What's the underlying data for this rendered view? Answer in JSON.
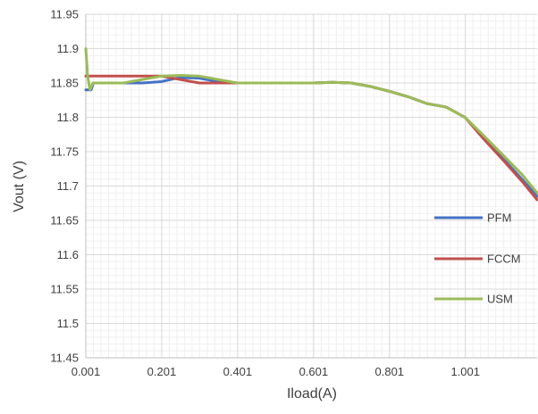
{
  "chart_data": {
    "type": "line",
    "title": "",
    "xlabel": "Iload(A)",
    "ylabel": "Vout (V)",
    "xlim": [
      0.001,
      1.19
    ],
    "ylim": [
      11.45,
      11.95
    ],
    "x_ticks": [
      0.001,
      0.201,
      0.401,
      0.601,
      0.801,
      1.001
    ],
    "x_tick_labels": [
      "0.001",
      "0.201",
      "0.401",
      "0.601",
      "0.801",
      "1.001"
    ],
    "y_ticks": [
      11.45,
      11.5,
      11.55,
      11.6,
      11.65,
      11.7,
      11.75,
      11.8,
      11.85,
      11.9,
      11.95
    ],
    "y_tick_labels": [
      "11.45",
      "11.5",
      "11.55",
      "11.6",
      "11.65",
      "11.7",
      "11.75",
      "11.8",
      "11.85",
      "11.9",
      "11.95"
    ],
    "grid": true,
    "legend_position": "bottom-right",
    "series": [
      {
        "name": "PFM",
        "color": "#4472C4",
        "points": [
          [
            0.001,
            11.84
          ],
          [
            0.015,
            11.84
          ],
          [
            0.021,
            11.85
          ],
          [
            0.05,
            11.85
          ],
          [
            0.1,
            11.85
          ],
          [
            0.15,
            11.85
          ],
          [
            0.2,
            11.852
          ],
          [
            0.25,
            11.858
          ],
          [
            0.3,
            11.857
          ],
          [
            0.35,
            11.852
          ],
          [
            0.4,
            11.85
          ],
          [
            0.5,
            11.85
          ],
          [
            0.6,
            11.85
          ],
          [
            0.65,
            11.851
          ],
          [
            0.7,
            11.85
          ],
          [
            0.75,
            11.845
          ],
          [
            0.8,
            11.838
          ],
          [
            0.85,
            11.83
          ],
          [
            0.9,
            11.82
          ],
          [
            0.95,
            11.815
          ],
          [
            1.0,
            11.8
          ],
          [
            1.05,
            11.77
          ],
          [
            1.1,
            11.74
          ],
          [
            1.15,
            11.71
          ],
          [
            1.19,
            11.685
          ]
        ]
      },
      {
        "name": "FCCM",
        "color": "#C0504D",
        "points": [
          [
            0.001,
            11.86
          ],
          [
            0.05,
            11.86
          ],
          [
            0.1,
            11.86
          ],
          [
            0.15,
            11.86
          ],
          [
            0.2,
            11.86
          ],
          [
            0.25,
            11.855
          ],
          [
            0.3,
            11.85
          ],
          [
            0.35,
            11.85
          ],
          [
            0.4,
            11.85
          ],
          [
            0.5,
            11.85
          ],
          [
            0.6,
            11.85
          ],
          [
            0.65,
            11.851
          ],
          [
            0.7,
            11.85
          ],
          [
            0.75,
            11.845
          ],
          [
            0.8,
            11.838
          ],
          [
            0.85,
            11.83
          ],
          [
            0.9,
            11.82
          ],
          [
            0.95,
            11.815
          ],
          [
            1.0,
            11.8
          ],
          [
            1.05,
            11.768
          ],
          [
            1.1,
            11.738
          ],
          [
            1.15,
            11.707
          ],
          [
            1.19,
            11.68
          ]
        ]
      },
      {
        "name": "USM",
        "color": "#9BBB59",
        "points": [
          [
            0.001,
            11.9
          ],
          [
            0.006,
            11.86
          ],
          [
            0.012,
            11.84
          ],
          [
            0.02,
            11.85
          ],
          [
            0.05,
            11.85
          ],
          [
            0.1,
            11.85
          ],
          [
            0.15,
            11.855
          ],
          [
            0.2,
            11.86
          ],
          [
            0.25,
            11.861
          ],
          [
            0.3,
            11.86
          ],
          [
            0.35,
            11.855
          ],
          [
            0.4,
            11.85
          ],
          [
            0.5,
            11.85
          ],
          [
            0.6,
            11.85
          ],
          [
            0.65,
            11.851
          ],
          [
            0.7,
            11.85
          ],
          [
            0.75,
            11.845
          ],
          [
            0.8,
            11.838
          ],
          [
            0.85,
            11.83
          ],
          [
            0.9,
            11.82
          ],
          [
            0.95,
            11.815
          ],
          [
            1.0,
            11.8
          ],
          [
            1.05,
            11.773
          ],
          [
            1.1,
            11.745
          ],
          [
            1.15,
            11.717
          ],
          [
            1.19,
            11.69
          ]
        ]
      }
    ]
  }
}
